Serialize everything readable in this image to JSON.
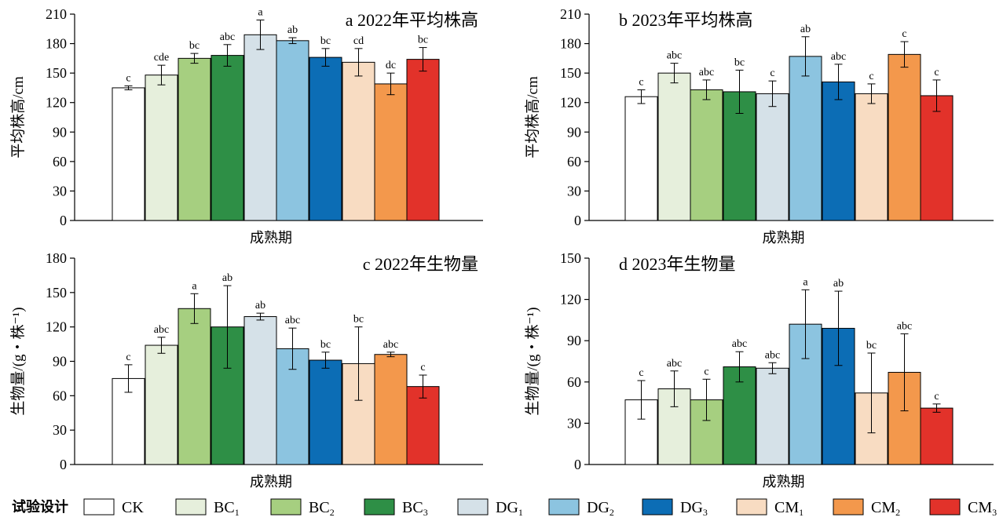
{
  "legend": {
    "title": "试验设计",
    "colors": [
      "#ffffff",
      "#e6efdc",
      "#a6cf80",
      "#2e8f46",
      "#d5e1e8",
      "#8cc4e0",
      "#0c6db5",
      "#f8dcc2",
      "#f3984c",
      "#e2322a"
    ],
    "items": [
      {
        "base": "CK",
        "sub": ""
      },
      {
        "base": "BC",
        "sub": "1"
      },
      {
        "base": "BC",
        "sub": "2"
      },
      {
        "base": "BC",
        "sub": "3"
      },
      {
        "base": "DG",
        "sub": "1"
      },
      {
        "base": "DG",
        "sub": "2"
      },
      {
        "base": "DG",
        "sub": "3"
      },
      {
        "base": "CM",
        "sub": "1"
      },
      {
        "base": "CM",
        "sub": "2"
      },
      {
        "base": "CM",
        "sub": "3"
      }
    ]
  },
  "chart_data": [
    {
      "type": "bar",
      "title": "a 2022年平均株高",
      "xlabel": "成熟期",
      "ylabel": "平均株高/cm",
      "ylim": [
        0,
        210
      ],
      "yticks": [
        0,
        30,
        60,
        90,
        120,
        150,
        180,
        210
      ],
      "categories": [
        "CK",
        "BC1",
        "BC2",
        "BC3",
        "DG1",
        "DG2",
        "DG3",
        "CM1",
        "CM2",
        "CM3"
      ],
      "values": [
        135,
        148,
        165,
        168,
        189,
        183,
        166,
        161,
        139,
        164
      ],
      "errors": [
        2,
        10,
        5,
        11,
        15,
        3,
        9,
        14,
        11,
        12
      ],
      "letters": [
        "c",
        "cde",
        "bc",
        "abc",
        "a",
        "ab",
        "bc",
        "cd",
        "dc",
        "bc"
      ]
    },
    {
      "type": "bar",
      "title": "b 2023年平均株高",
      "xlabel": "成熟期",
      "ylabel": "平均株高/cm",
      "ylim": [
        0,
        210
      ],
      "yticks": [
        0,
        30,
        60,
        90,
        120,
        150,
        180,
        210
      ],
      "categories": [
        "CK",
        "BC1",
        "BC2",
        "BC3",
        "DG1",
        "DG2",
        "DG3",
        "CM1",
        "CM2",
        "CM3"
      ],
      "values": [
        126,
        150,
        133,
        131,
        129,
        167,
        141,
        129,
        169,
        127
      ],
      "errors": [
        7,
        10,
        10,
        22,
        13,
        20,
        18,
        10,
        13,
        16
      ],
      "letters": [
        "c",
        "abc",
        "abc",
        "bc",
        "c",
        "ab",
        "abc",
        "c",
        "c",
        "c"
      ]
    },
    {
      "type": "bar",
      "title": "c 2022年生物量",
      "xlabel": "成熟期",
      "ylabel": "生物量/(g・株⁻¹)",
      "ylim": [
        0,
        180
      ],
      "yticks": [
        0,
        30,
        60,
        90,
        120,
        150,
        180
      ],
      "categories": [
        "CK",
        "BC1",
        "BC2",
        "BC3",
        "DG1",
        "DG2",
        "DG3",
        "CM1",
        "CM2",
        "CM3"
      ],
      "values": [
        75,
        104,
        136,
        120,
        129,
        101,
        91,
        88,
        96,
        68
      ],
      "errors": [
        12,
        7,
        13,
        36,
        3,
        18,
        7,
        32,
        2,
        10
      ],
      "letters": [
        "c",
        "abc",
        "a",
        "ab",
        "ab",
        "abc",
        "bc",
        "bc",
        "abc",
        "c"
      ]
    },
    {
      "type": "bar",
      "title": "d 2023年生物量",
      "xlabel": "成熟期",
      "ylabel": "生物量/(g・株⁻¹)",
      "ylim": [
        0,
        150
      ],
      "yticks": [
        0,
        30,
        60,
        90,
        120,
        150
      ],
      "categories": [
        "CK",
        "BC1",
        "BC2",
        "BC3",
        "DG1",
        "DG2",
        "DG3",
        "CM1",
        "CM2",
        "CM3"
      ],
      "values": [
        47,
        55,
        47,
        71,
        70,
        102,
        99,
        52,
        67,
        41
      ],
      "errors": [
        14,
        13,
        15,
        11,
        4,
        25,
        27,
        29,
        28,
        3
      ],
      "letters": [
        "c",
        "abc",
        "c",
        "abc",
        "abc",
        "a",
        "ab",
        "bc",
        "abc",
        "c"
      ]
    }
  ]
}
